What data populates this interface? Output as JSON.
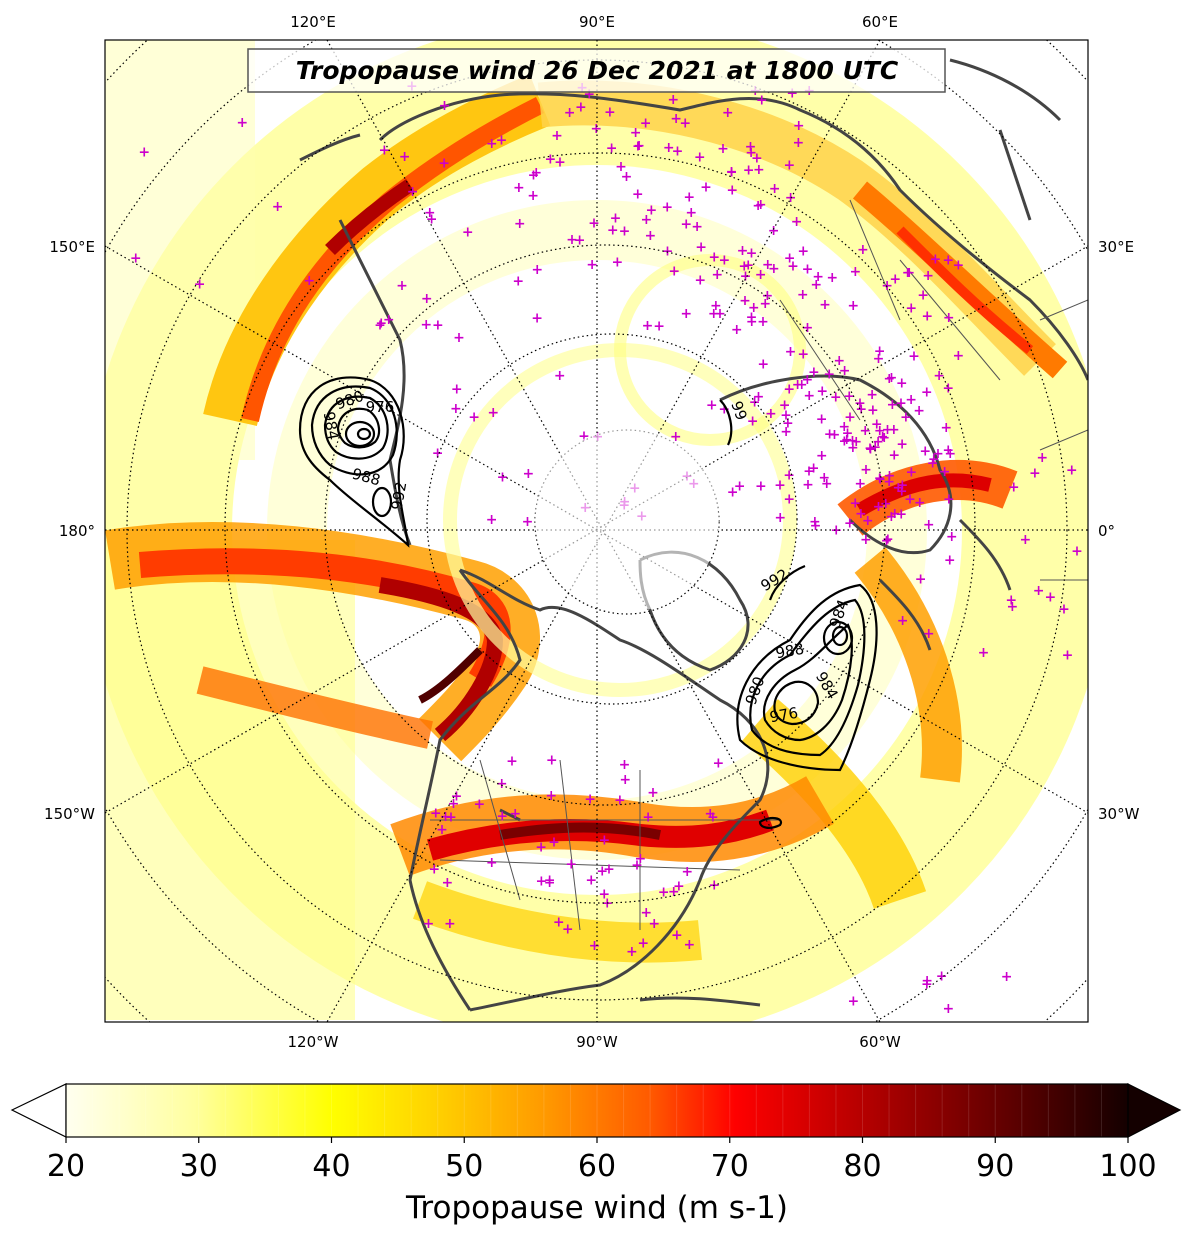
{
  "title": "Tropopause wind 26 Dec 2021 at 1800 UTC",
  "map": {
    "projection": "north-polar-stereographic",
    "center_meridian_bottom": "90°W",
    "graticule": "dotted",
    "top_labels": [
      "120°E",
      "90°E",
      "60°E"
    ],
    "bottom_labels": [
      "120°W",
      "90°W",
      "60°W"
    ],
    "left_labels": [
      "150°E",
      "180°",
      "150°W"
    ],
    "right_labels": [
      "30°E",
      "0°",
      "30°W"
    ],
    "coastline_color": "#444444",
    "station_marker_color": "#cc00cc"
  },
  "pressure_contours": {
    "color": "#000000",
    "labels": [
      "980",
      "976",
      "984",
      "988",
      "992",
      "992",
      "984",
      "988",
      "984",
      "980",
      "976",
      "99"
    ]
  },
  "colorbar": {
    "label": "Tropopause wind (m s-1)",
    "ticks": [
      "20",
      "30",
      "40",
      "50",
      "60",
      "70",
      "80",
      "90",
      "100"
    ],
    "min": 20,
    "max": 100,
    "extend": "both",
    "colors": [
      "#fffff0",
      "#ffffc0",
      "#ffff60",
      "#ffff00",
      "#ffd700",
      "#ffa500",
      "#ff7700",
      "#ff2a00",
      "#dd0000",
      "#a00000",
      "#600000",
      "#200000"
    ]
  }
}
